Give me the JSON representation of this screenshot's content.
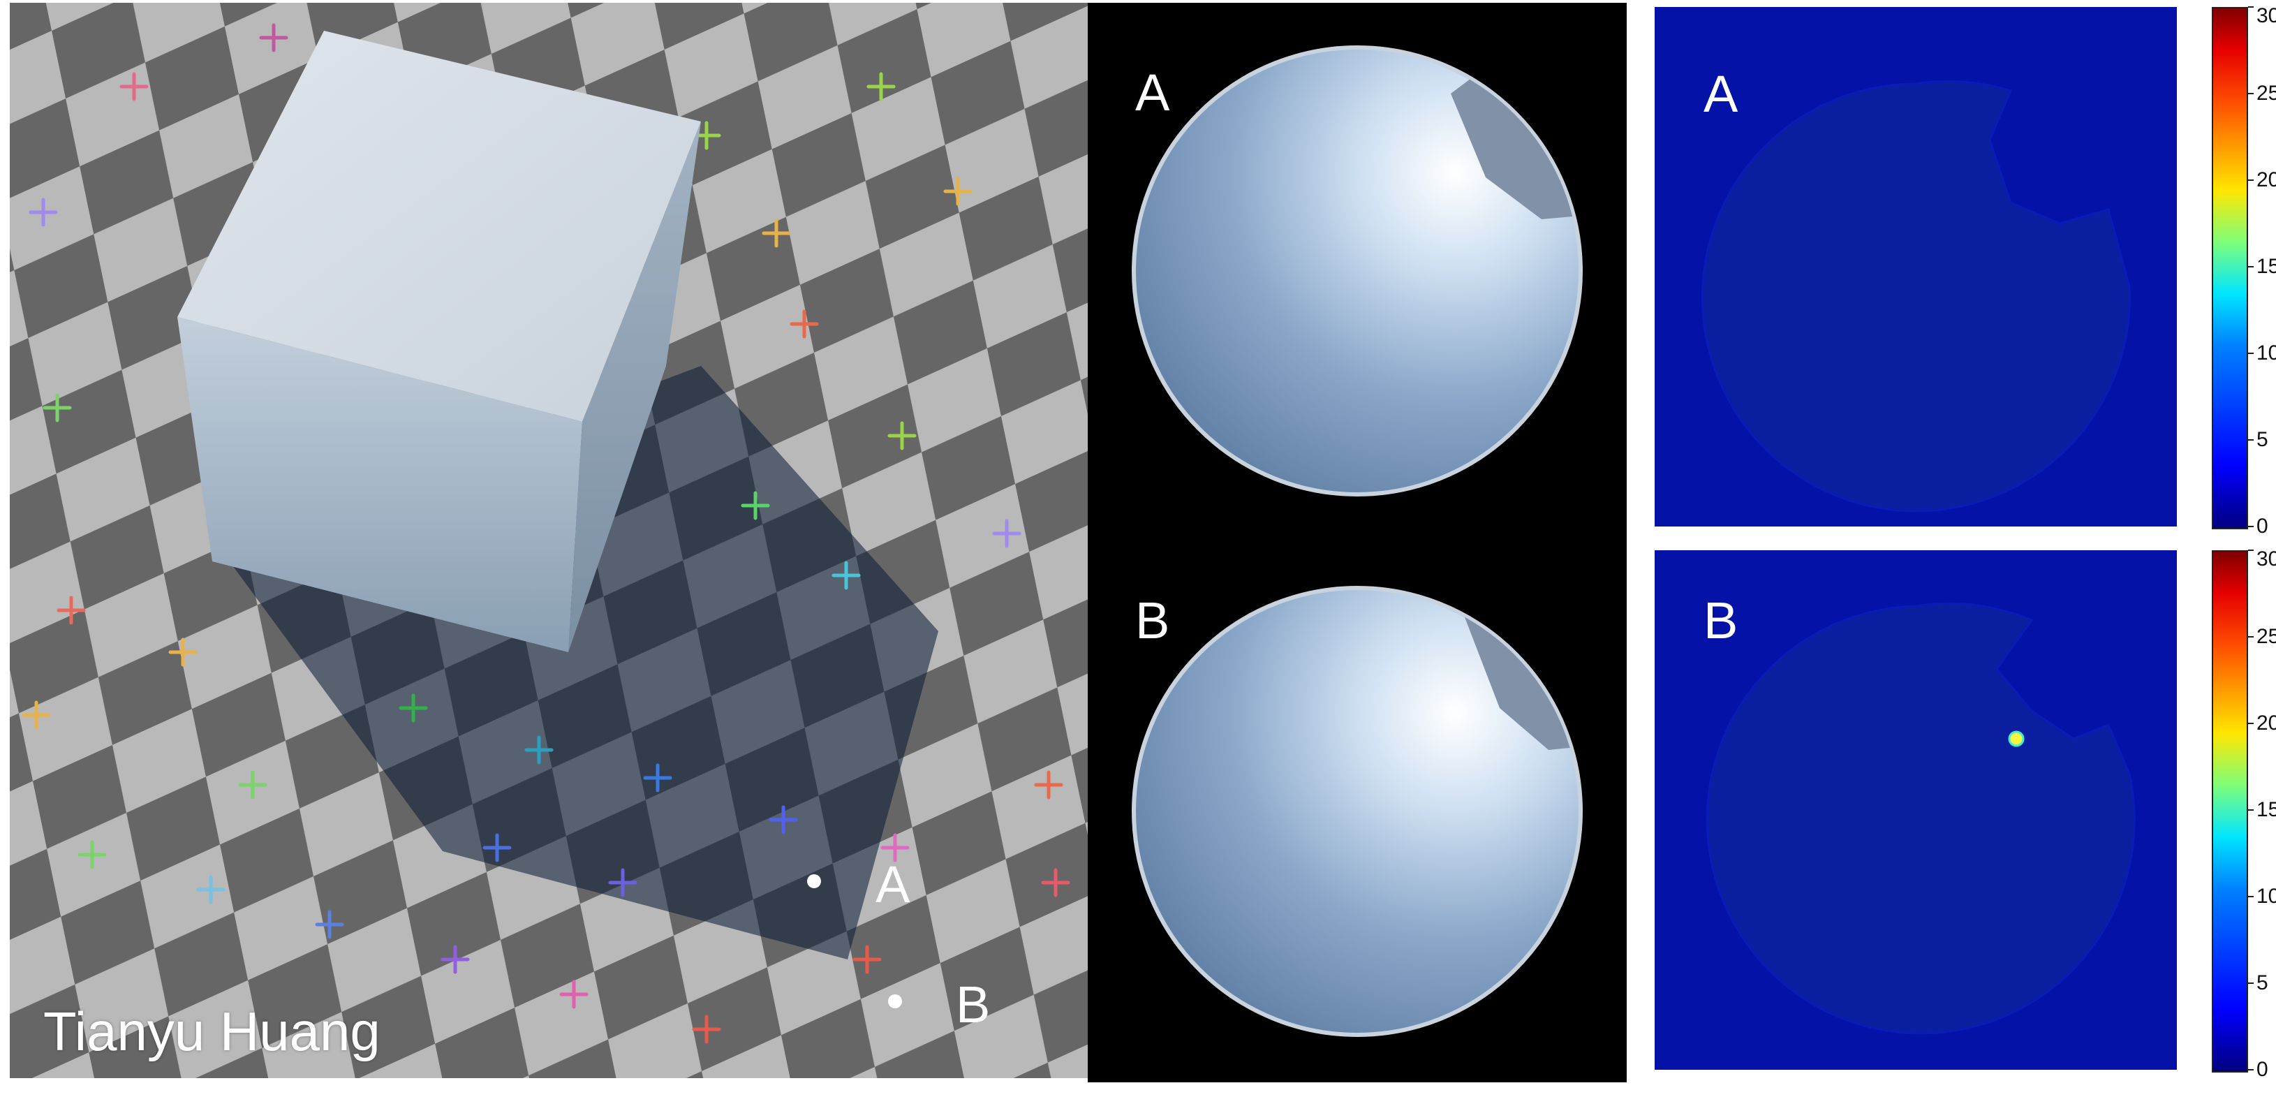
{
  "scene": {
    "credit": "Tianyu Huang",
    "point_a_label": "A",
    "point_b_label": "B"
  },
  "fisheye": {
    "label_a": "A",
    "label_b": "B"
  },
  "heatmaps": {
    "label_a": "A",
    "label_b": "B"
  },
  "colorbar_top": {
    "ticks": [
      "30",
      "25",
      "20",
      "15",
      "10",
      "5",
      "0"
    ]
  },
  "colorbar_bottom": {
    "ticks": [
      "30",
      "25",
      "20",
      "15",
      "10",
      "5",
      "0"
    ]
  },
  "colors": {
    "checker_light": "#b9b9b9",
    "checker_dark": "#666666",
    "cube": "#b8c8d8",
    "sky": "#8aa7c9",
    "heatmap_bg": "#05149c",
    "hotspot": "#f5f542"
  }
}
